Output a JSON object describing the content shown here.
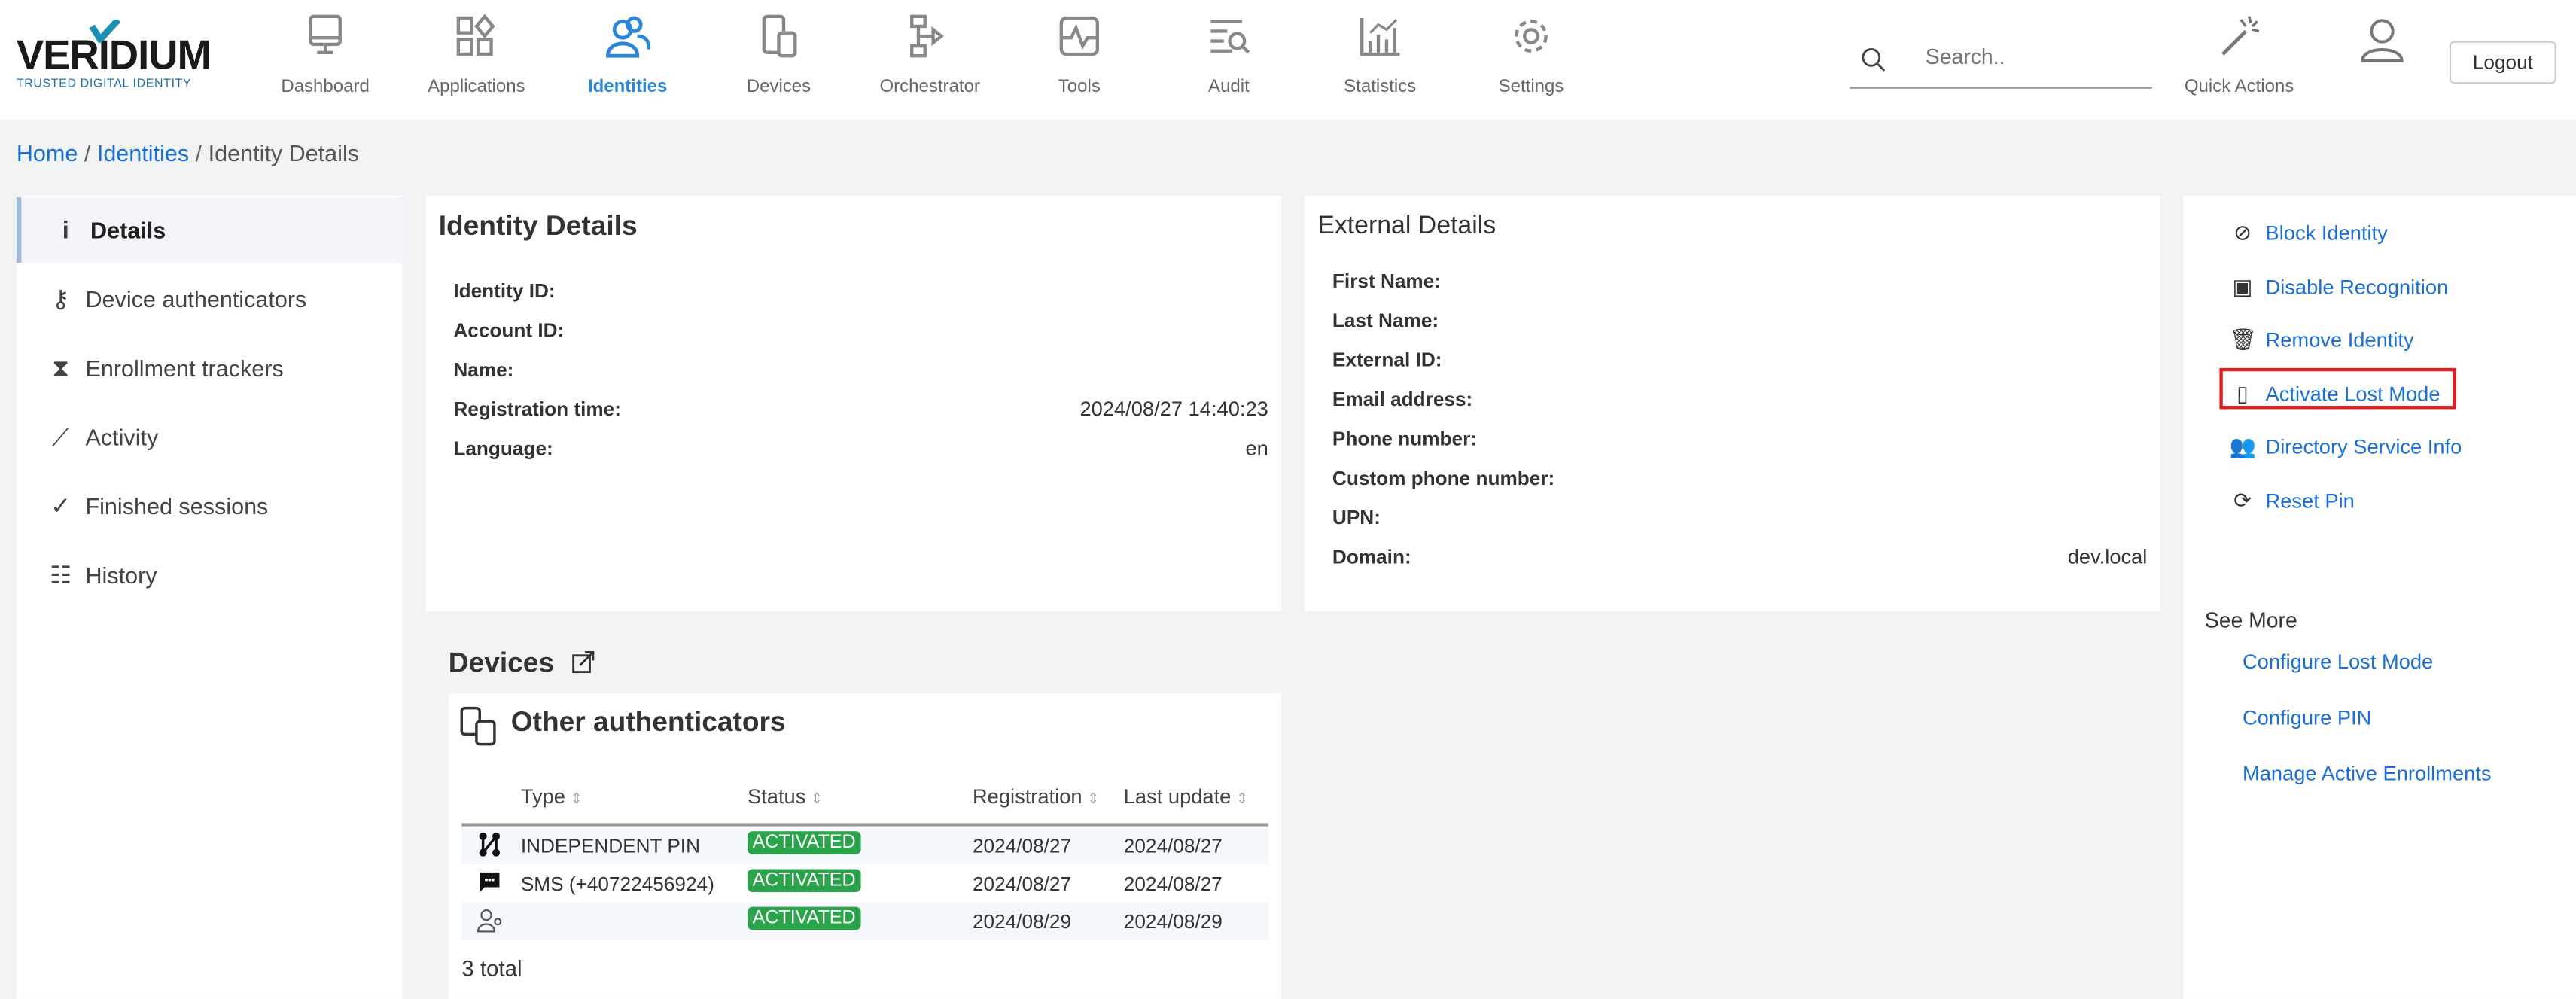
{
  "logo": {
    "name": "VERIDIUM",
    "tagline": "TRUSTED DIGITAL IDENTITY"
  },
  "nav": [
    {
      "label": "Dashboard",
      "icon": "monitor-icon"
    },
    {
      "label": "Applications",
      "icon": "apps-icon"
    },
    {
      "label": "Identities",
      "icon": "users-icon",
      "active": true
    },
    {
      "label": "Devices",
      "icon": "devices-icon"
    },
    {
      "label": "Orchestrator",
      "icon": "flow-icon"
    },
    {
      "label": "Tools",
      "icon": "tools-icon"
    },
    {
      "label": "Audit",
      "icon": "audit-icon"
    },
    {
      "label": "Statistics",
      "icon": "stats-icon"
    },
    {
      "label": "Settings",
      "icon": "gear-icon"
    }
  ],
  "search": {
    "placeholder": "Search.."
  },
  "quick_actions": "Quick Actions",
  "logout": "Logout",
  "breadcrumb": {
    "home": "Home",
    "identities": "Identities",
    "current": "Identity Details"
  },
  "sidebar": [
    {
      "label": "Details",
      "icon": "i"
    },
    {
      "label": "Device authenticators",
      "icon": "⚷"
    },
    {
      "label": "Enrollment trackers",
      "icon": "⧗"
    },
    {
      "label": "Activity",
      "icon": "⟋"
    },
    {
      "label": "Finished sessions",
      "icon": "✓"
    },
    {
      "label": "History",
      "icon": "☷"
    }
  ],
  "identity": {
    "title": "Identity Details",
    "rows": [
      {
        "label": "Identity ID:",
        "value": ""
      },
      {
        "label": "Account ID:",
        "value": ""
      },
      {
        "label": "Name:",
        "value": ""
      },
      {
        "label": "Registration time:",
        "value": "2024/08/27 14:40:23"
      },
      {
        "label": "Language:",
        "value": "en"
      }
    ]
  },
  "external": {
    "title": "External Details",
    "rows": [
      {
        "label": "First Name:",
        "value": ""
      },
      {
        "label": "Last Name:",
        "value": ""
      },
      {
        "label": "External ID:",
        "value": ""
      },
      {
        "label": "Email address:",
        "value": ""
      },
      {
        "label": "Phone number:",
        "value": ""
      },
      {
        "label": "Custom phone number:",
        "value": ""
      },
      {
        "label": "UPN:",
        "value": ""
      },
      {
        "label": "Domain:",
        "value": "dev.local"
      }
    ]
  },
  "actions": [
    {
      "label": "Block Identity",
      "icon": "⊘"
    },
    {
      "label": "Disable Recognition",
      "icon": "▣"
    },
    {
      "label": "Remove Identity",
      "icon": "🗑"
    },
    {
      "label": "Activate Lost Mode",
      "icon": "▯",
      "highlighted": true
    },
    {
      "label": "Directory Service Info",
      "icon": "👥"
    },
    {
      "label": "Reset Pin",
      "icon": "⟳"
    }
  ],
  "see_more": {
    "title": "See More",
    "links": [
      "Configure Lost Mode",
      "Configure PIN",
      "Manage Active Enrollments"
    ]
  },
  "devices": {
    "title": "Devices",
    "card_title": "Other authenticators",
    "columns": [
      "Type",
      "Status",
      "Registration",
      "Last update"
    ],
    "rows": [
      {
        "icon": "pin-icon",
        "type": "INDEPENDENT PIN",
        "status": "ACTIVATED",
        "registration": "2024/08/27",
        "last_update": "2024/08/27"
      },
      {
        "icon": "sms-icon",
        "type": "SMS (+40722456924)",
        "status": "ACTIVATED",
        "registration": "2024/08/27",
        "last_update": "2024/08/27"
      },
      {
        "icon": "user-key-icon",
        "type": "",
        "status": "ACTIVATED",
        "registration": "2024/08/29",
        "last_update": "2024/08/29"
      }
    ],
    "total": "3 total"
  },
  "colors": {
    "accent": "#2a86d8",
    "link": "#1a6fd6",
    "status_green": "#2aa44a",
    "highlight_border": "#e02020"
  }
}
